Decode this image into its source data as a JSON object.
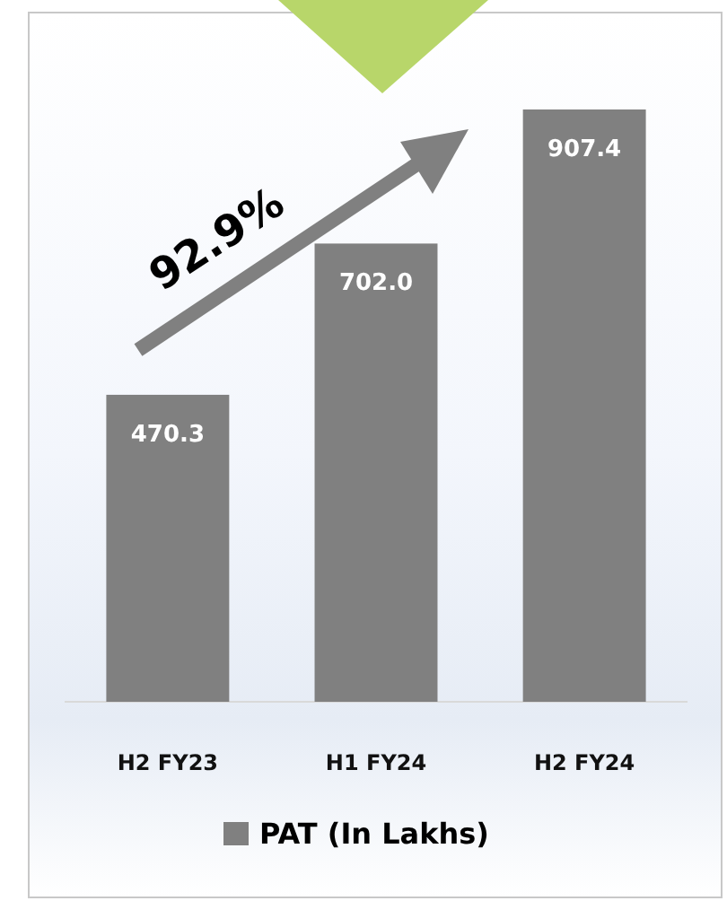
{
  "chart_data": {
    "type": "bar",
    "categories": [
      "H2 FY23",
      "H1 FY24",
      "H2 FY24"
    ],
    "series": [
      {
        "name": "PAT (In Lakhs)",
        "color": "#808080",
        "values": [
          470.3,
          702.0,
          907.4
        ],
        "value_labels": [
          "470.3",
          "702.0",
          "907.4"
        ]
      }
    ],
    "legend": "bottom",
    "grid": false,
    "annotations": [
      "92.9%"
    ]
  }
}
